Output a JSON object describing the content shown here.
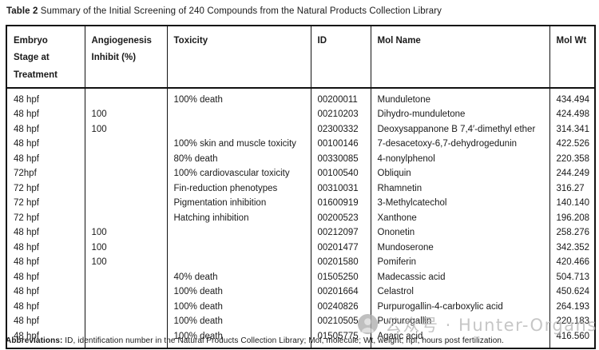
{
  "title": {
    "label": "Table 2",
    "text": " Summary of the Initial Screening of 240 Compounds from the Natural Products Collection Library"
  },
  "table": {
    "columns": [
      {
        "key": "stage",
        "header": "Embryo\nStage at\nTreatment"
      },
      {
        "key": "inhibit",
        "header": "Angiogenesis\nInhibit (%)"
      },
      {
        "key": "toxicity",
        "header": "Toxicity"
      },
      {
        "key": "id",
        "header": "ID"
      },
      {
        "key": "mol_name",
        "header": "Mol Name"
      },
      {
        "key": "mol_wt",
        "header": "Mol Wt"
      }
    ],
    "rows": [
      {
        "stage": "48 hpf",
        "inhibit": "",
        "toxicity": "100% death",
        "id": "00200011",
        "mol_name": "Munduletone",
        "mol_wt": "434.494"
      },
      {
        "stage": "48 hpf",
        "inhibit": "100",
        "toxicity": "",
        "id": "00210203",
        "mol_name": "Dihydro-munduletone",
        "mol_wt": "424.498"
      },
      {
        "stage": "48 hpf",
        "inhibit": "100",
        "toxicity": "",
        "id": "02300332",
        "mol_name": "Deoxysappanone B 7,4′-dimethyl ether",
        "mol_wt": "314.341"
      },
      {
        "stage": "48 hpf",
        "inhibit": "",
        "toxicity": "100% skin and muscle toxicity",
        "id": "00100146",
        "mol_name": "7-desacetoxy-6,7-dehydrogedunin",
        "mol_wt": "422.526"
      },
      {
        "stage": "48 hpf",
        "inhibit": "",
        "toxicity": "80% death",
        "id": "00330085",
        "mol_name": "4-nonylphenol",
        "mol_wt": "220.358"
      },
      {
        "stage": "72hpf",
        "inhibit": "",
        "toxicity": "100% cardiovascular toxicity",
        "id": "00100540",
        "mol_name": "Obliquin",
        "mol_wt": "244.249"
      },
      {
        "stage": "72 hpf",
        "inhibit": "",
        "toxicity": "Fin-reduction phenotypes",
        "id": "00310031",
        "mol_name": "Rhamnetin",
        "mol_wt": "316.27"
      },
      {
        "stage": "72 hpf",
        "inhibit": "",
        "toxicity": "Pigmentation inhibition",
        "id": "01600919",
        "mol_name": "3-Methylcatechol",
        "mol_wt": "140.140"
      },
      {
        "stage": "72 hpf",
        "inhibit": "",
        "toxicity": "Hatching inhibition",
        "id": "00200523",
        "mol_name": "Xanthone",
        "mol_wt": "196.208"
      },
      {
        "stage": "48 hpf",
        "inhibit": "100",
        "toxicity": "",
        "id": "00212097",
        "mol_name": "Ononetin",
        "mol_wt": "258.276"
      },
      {
        "stage": "48 hpf",
        "inhibit": "100",
        "toxicity": "",
        "id": "00201477",
        "mol_name": "Mundoserone",
        "mol_wt": "342.352"
      },
      {
        "stage": "48 hpf",
        "inhibit": "100",
        "toxicity": "",
        "id": "00201580",
        "mol_name": "Pomiferin",
        "mol_wt": "420.466"
      },
      {
        "stage": "48 hpf",
        "inhibit": "",
        "toxicity": "40% death",
        "id": "01505250",
        "mol_name": "Madecassic acid",
        "mol_wt": "504.713"
      },
      {
        "stage": "48 hpf",
        "inhibit": "",
        "toxicity": "100% death",
        "id": "00201664",
        "mol_name": "Celastrol",
        "mol_wt": "450.624"
      },
      {
        "stage": "48 hpf",
        "inhibit": "",
        "toxicity": "100% death",
        "id": "00240826",
        "mol_name": "Purpurogallin-4-carboxylic acid",
        "mol_wt": "264.193"
      },
      {
        "stage": "48 hpf",
        "inhibit": "",
        "toxicity": "100% death",
        "id": "00210505",
        "mol_name": "Purpurogallin",
        "mol_wt": "220.183"
      },
      {
        "stage": "48 hpf",
        "inhibit": "",
        "toxicity": "100% death",
        "id": "01505775",
        "mol_name": "Agaric acid",
        "mol_wt": "416.560"
      }
    ]
  },
  "footnote": {
    "label": "Abbreviations:",
    "text": " ID, identification number in the Natural Products Collection Library; Mol, molecule; Wt, weight; hpf, hours post fertilization."
  },
  "watermark": {
    "icon": "wechat-official-account-logo",
    "text": "公众号 · Hunter-Organs"
  },
  "colors": {
    "text": "#1a1a1a",
    "border": "#111111",
    "watermark": "#b9b9b9",
    "background": "#ffffff"
  }
}
